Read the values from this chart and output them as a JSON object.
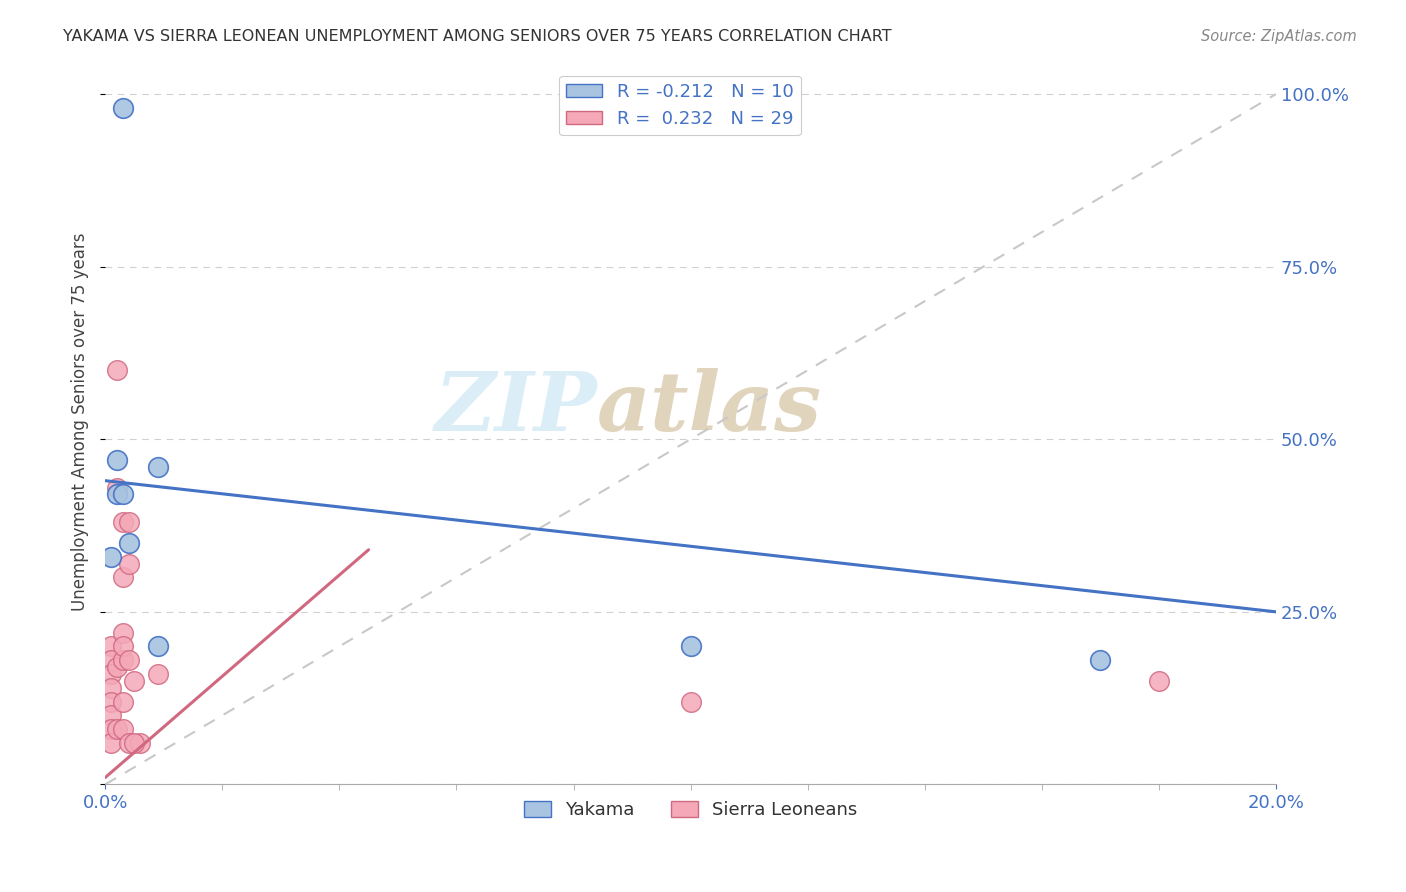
{
  "title": "YAKAMA VS SIERRA LEONEAN UNEMPLOYMENT AMONG SENIORS OVER 75 YEARS CORRELATION CHART",
  "source": "Source: ZipAtlas.com",
  "tick_color": "#4472c4",
  "ylabel": "Unemployment Among Seniors over 75 years",
  "yakama_R": "-0.212",
  "yakama_N": "10",
  "sierra_R": "0.232",
  "sierra_N": "29",
  "yakama_color": "#a8c4e0",
  "sierra_color": "#f4a8b8",
  "yakama_line_color": "#4472c4",
  "sierra_line_color": "#d06880",
  "watermark_zip": "ZIP",
  "watermark_atlas": "atlas",
  "xlim": [
    0.0,
    0.2
  ],
  "ylim": [
    0.0,
    1.05
  ],
  "yakama_x": [
    0.003,
    0.001,
    0.002,
    0.002,
    0.003,
    0.004,
    0.009,
    0.009,
    0.1,
    0.17
  ],
  "yakama_y": [
    0.98,
    0.33,
    0.47,
    0.42,
    0.42,
    0.35,
    0.2,
    0.46,
    0.2,
    0.18
  ],
  "sierra_x": [
    0.001,
    0.001,
    0.001,
    0.001,
    0.001,
    0.001,
    0.001,
    0.001,
    0.002,
    0.002,
    0.002,
    0.003,
    0.003,
    0.003,
    0.003,
    0.003,
    0.003,
    0.004,
    0.004,
    0.004,
    0.005,
    0.006,
    0.009,
    0.1,
    0.18,
    0.002,
    0.003,
    0.004,
    0.005
  ],
  "sierra_y": [
    0.2,
    0.18,
    0.16,
    0.14,
    0.12,
    0.1,
    0.08,
    0.06,
    0.6,
    0.17,
    0.08,
    0.38,
    0.3,
    0.22,
    0.18,
    0.12,
    0.08,
    0.38,
    0.32,
    0.06,
    0.15,
    0.06,
    0.16,
    0.12,
    0.15,
    0.43,
    0.2,
    0.18,
    0.06
  ]
}
